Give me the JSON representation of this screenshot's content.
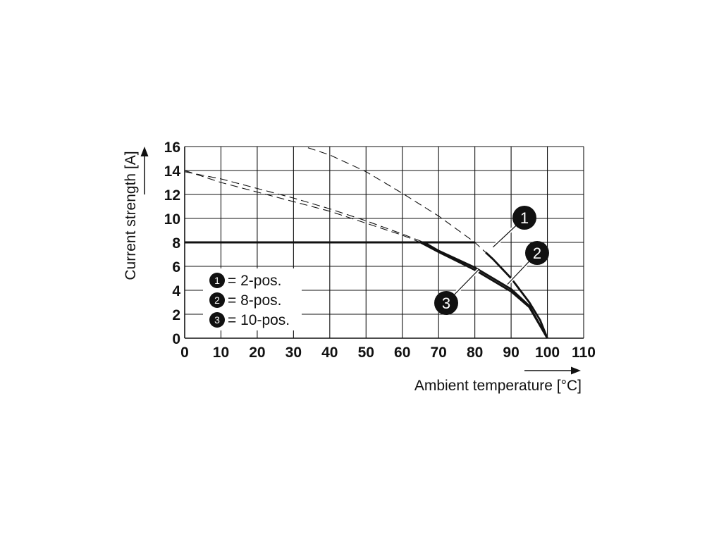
{
  "chart_data": {
    "type": "line",
    "xlabel": "Ambient temperature [°C]",
    "ylabel": "Current strength [A]",
    "xlim": [
      0,
      110
    ],
    "ylim": [
      0,
      16
    ],
    "x_ticks": [
      "0",
      "10",
      "20",
      "30",
      "40",
      "50",
      "60",
      "70",
      "80",
      "90",
      "100",
      "110"
    ],
    "y_ticks": [
      "0",
      "2",
      "4",
      "6",
      "8",
      "10",
      "12",
      "14",
      "16"
    ],
    "grid": true,
    "limit_line": {
      "value": 8,
      "x": [
        0,
        80
      ]
    },
    "series": [
      {
        "id": "1",
        "x": [
          34,
          40,
          50,
          60,
          70,
          80,
          85,
          90,
          95,
          98,
          100
        ],
        "y": [
          15.9,
          15.3,
          13.9,
          12.1,
          10.2,
          8.0,
          6.6,
          5.0,
          3.0,
          1.5,
          0
        ],
        "dashed_until_x": 83
      },
      {
        "id": "2",
        "x": [
          0,
          10,
          20,
          30,
          40,
          50,
          60,
          66,
          70,
          80,
          90,
          95,
          100
        ],
        "y": [
          13.9,
          13.3,
          12.5,
          11.7,
          10.8,
          9.8,
          8.7,
          8.0,
          7.3,
          5.9,
          4.1,
          2.7,
          0
        ],
        "dashed_until_x": 66
      },
      {
        "id": "3",
        "x": [
          0,
          10,
          20,
          30,
          40,
          50,
          60,
          65,
          70,
          80,
          90,
          95,
          100
        ],
        "y": [
          14.0,
          13.0,
          12.2,
          11.4,
          10.6,
          9.6,
          8.6,
          8.0,
          7.2,
          5.7,
          3.9,
          2.6,
          0
        ],
        "dashed_until_x": 65
      }
    ],
    "legend": [
      {
        "num": "1",
        "label": "= 2-pos."
      },
      {
        "num": "2",
        "label": "= 8-pos."
      },
      {
        "num": "3",
        "label": "= 10-pos."
      }
    ],
    "callouts": [
      {
        "num": "1",
        "at_x": 85,
        "at_y": 7.6
      },
      {
        "num": "2",
        "at_x": 89,
        "at_y": 4.5
      },
      {
        "num": "3",
        "at_x": 81,
        "at_y": 5.7
      }
    ]
  }
}
